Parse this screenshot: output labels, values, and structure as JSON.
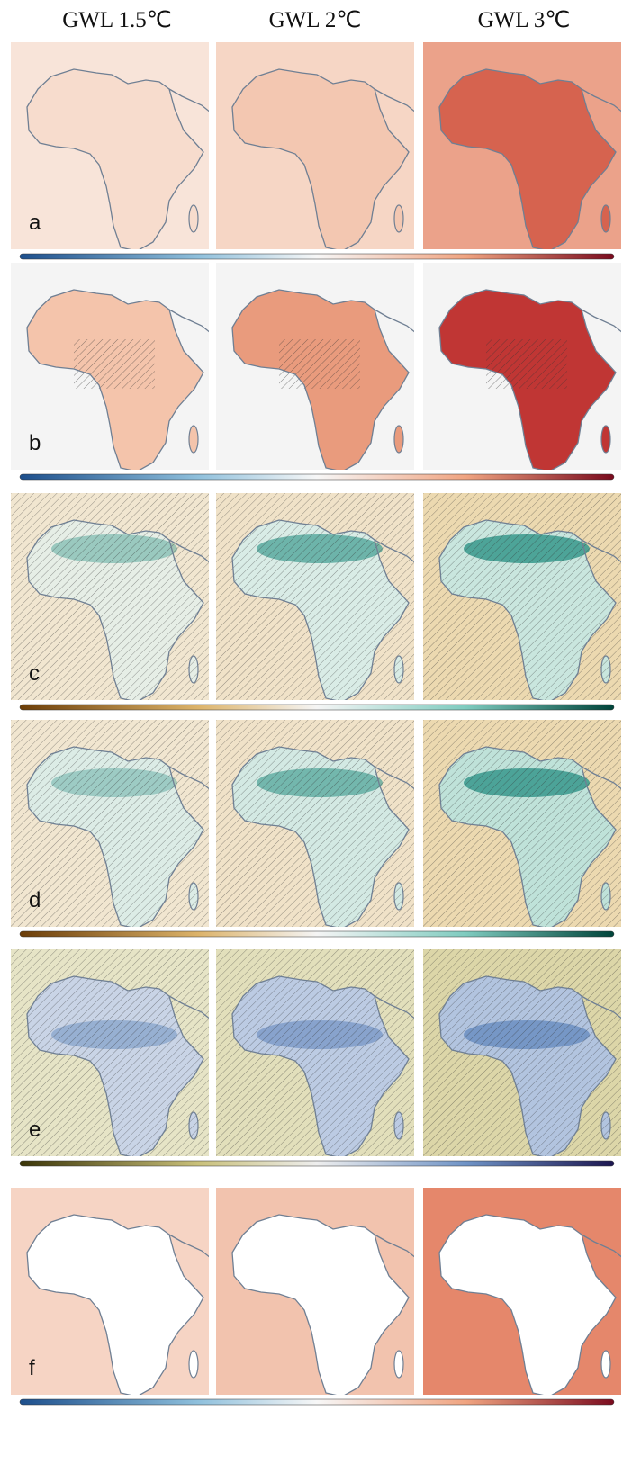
{
  "header": {
    "columns": [
      "GWL 1.5℃",
      "GWL 2℃",
      "GWL 3℃"
    ]
  },
  "panels": [
    {
      "label": "a"
    },
    {
      "label": "b"
    },
    {
      "label": "c"
    },
    {
      "label": "d"
    },
    {
      "label": "e"
    },
    {
      "label": "f"
    }
  ]
}
